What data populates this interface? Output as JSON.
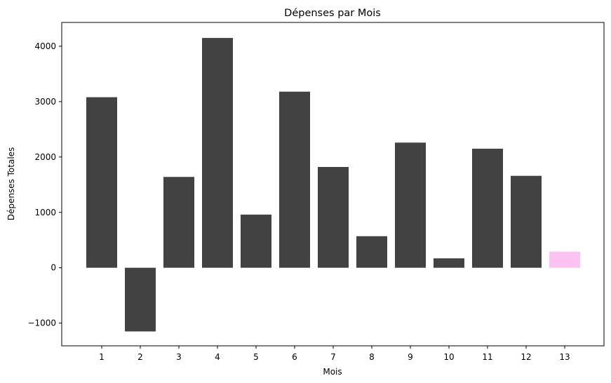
{
  "chart_data": {
    "type": "bar",
    "title": "Dépenses par Mois",
    "xlabel": "Mois",
    "ylabel": "Dépenses Totales",
    "categories": [
      "1",
      "2",
      "3",
      "4",
      "5",
      "6",
      "7",
      "8",
      "9",
      "10",
      "11",
      "12",
      "13"
    ],
    "values": [
      3080,
      -1150,
      1640,
      4150,
      960,
      3180,
      1820,
      570,
      2260,
      170,
      2150,
      1660,
      290
    ],
    "bar_colors": [
      "#424242",
      "#424242",
      "#424242",
      "#424242",
      "#424242",
      "#424242",
      "#424242",
      "#424242",
      "#424242",
      "#424242",
      "#424242",
      "#424242",
      "#fcc2f0"
    ],
    "ylim": [
      -1410,
      4430
    ],
    "yticks": [
      -1000,
      0,
      1000,
      2000,
      3000,
      4000
    ],
    "ytick_labels": [
      "−1000",
      "0",
      "1000",
      "2000",
      "3000",
      "4000"
    ],
    "grid": false,
    "legend": "none"
  }
}
